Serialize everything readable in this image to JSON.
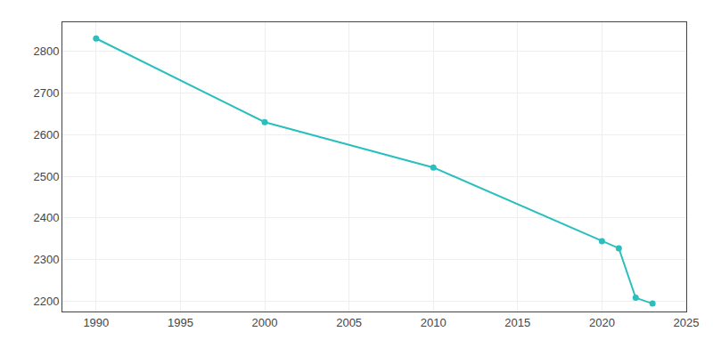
{
  "chart_data": {
    "type": "line",
    "x": [
      1990,
      2000,
      2010,
      2020,
      2021,
      2022,
      2023
    ],
    "values": [
      2831,
      2630,
      2521,
      2344,
      2327,
      2208,
      2194
    ],
    "color": "#2abfbf",
    "marker": "circle",
    "xlim": [
      1988,
      2025
    ],
    "ylim": [
      2175,
      2870
    ],
    "xticks": [
      1990,
      1995,
      2000,
      2005,
      2010,
      2015,
      2020,
      2025
    ],
    "yticks": [
      2200,
      2300,
      2400,
      2500,
      2600,
      2700,
      2800
    ],
    "grid": true
  }
}
